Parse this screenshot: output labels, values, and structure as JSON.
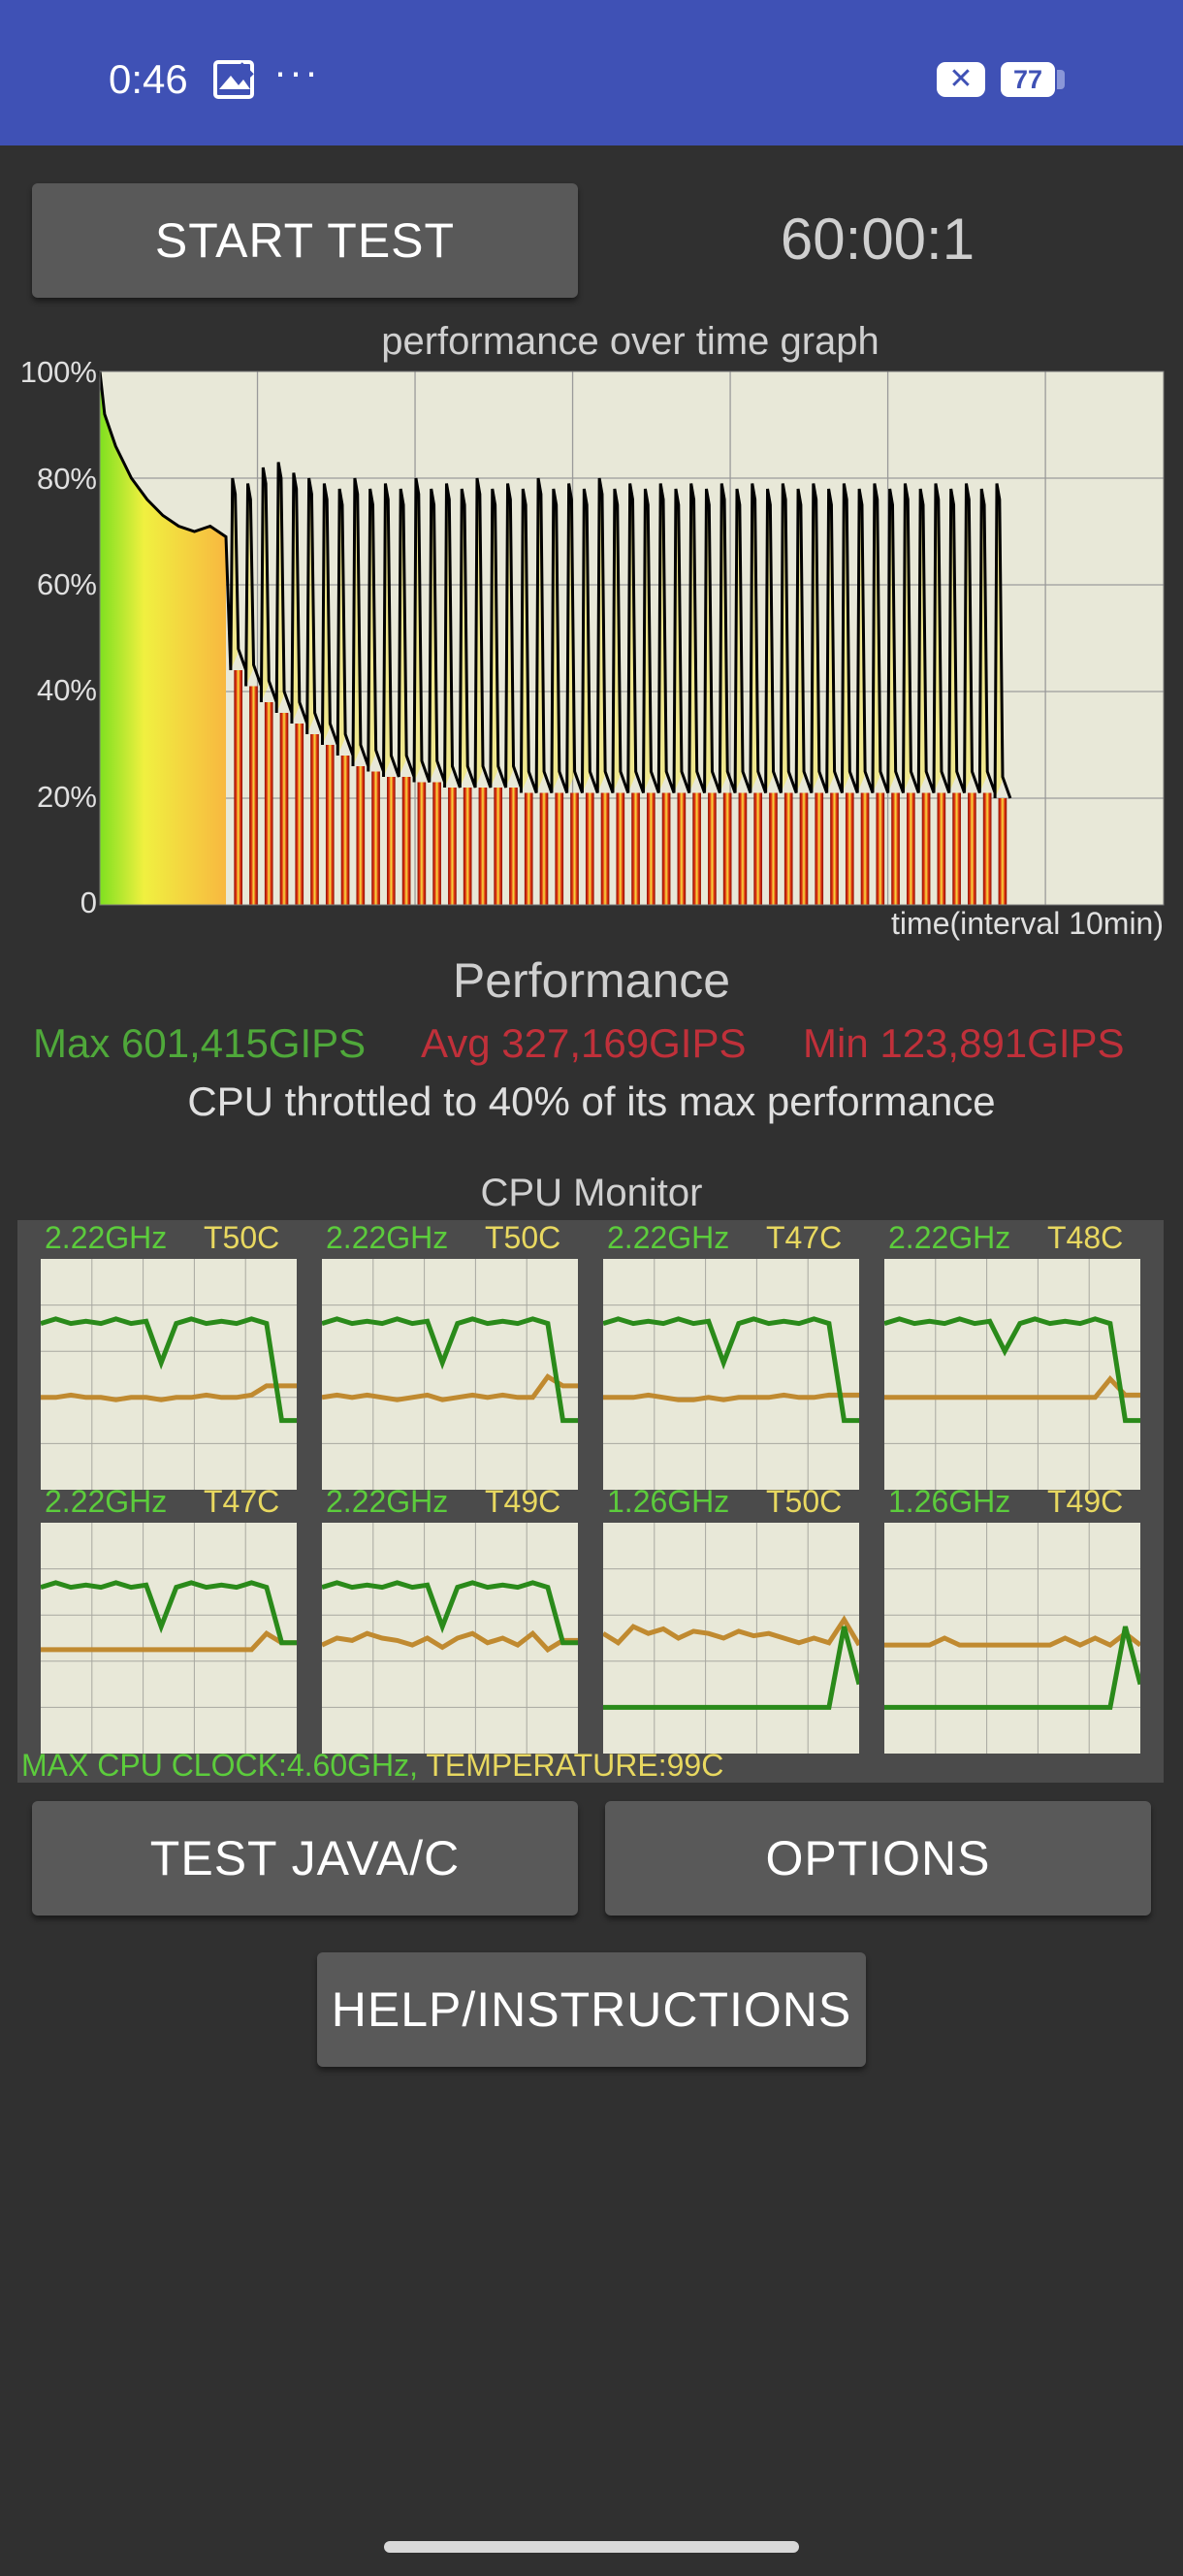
{
  "status_bar": {
    "time": "0:46",
    "photo_icon": "image-icon",
    "more": "···",
    "notification_badge": "✕",
    "battery_level": "77"
  },
  "controls": {
    "start_label": "START TEST",
    "timer": "60:00:1"
  },
  "chart_data": {
    "type": "area",
    "title": "performance over time graph",
    "xlabel": "time(interval 10min)",
    "ylabel": "",
    "y_tick_labels": [
      "100%",
      "80%",
      "60%",
      "40%",
      "20%",
      "0"
    ],
    "ylim": [
      0,
      100
    ],
    "xlim": [
      0,
      67.5
    ],
    "grid": true,
    "x_gridlines_minutes": [
      10,
      20,
      30,
      40,
      50,
      60
    ],
    "series": [
      {
        "x": [
          0,
          0.3,
          1,
          2,
          3,
          4,
          5,
          6,
          7,
          8
        ],
        "y": [
          100,
          92,
          86,
          80,
          76,
          73,
          71,
          70,
          71,
          69
        ]
      },
      {
        "cycles_start_min": 8.3,
        "cycle_period_min": 0.97,
        "cycle_count": 51,
        "peak_percent": [
          80,
          79,
          82,
          83,
          81,
          80,
          79,
          78,
          80,
          78,
          79,
          78,
          80,
          78,
          79,
          78,
          80,
          78,
          79,
          78,
          80,
          78,
          79,
          78,
          80,
          78,
          79,
          78,
          79,
          78,
          79,
          78,
          79,
          78,
          79,
          78,
          79,
          78,
          79,
          78,
          79,
          78,
          79,
          78,
          79,
          78,
          79,
          78,
          79,
          78,
          79
        ],
        "trough_percent": [
          44,
          41,
          38,
          36,
          34,
          32,
          30,
          28,
          26,
          25,
          24,
          24,
          23,
          23,
          22,
          22,
          22,
          22,
          22,
          21,
          21,
          21,
          21,
          21,
          21,
          21,
          21,
          21,
          21,
          21,
          21,
          21,
          21,
          21,
          21,
          21,
          21,
          21,
          21,
          21,
          21,
          21,
          21,
          21,
          21,
          21,
          21,
          21,
          21,
          21,
          20
        ]
      }
    ],
    "colors": {
      "plot_bg": "#e8e8d8",
      "line": "#000000",
      "fill_high": "#7fe020",
      "fill_mid": "#f8e040",
      "fill_low": "#d02010"
    }
  },
  "performance": {
    "heading": "Performance",
    "max": "Max 601,415GIPS",
    "avg": "Avg 327,169GIPS",
    "min": "Min 123,891GIPS",
    "max_color": "#4fa83a",
    "avg_color": "#c0303a",
    "min_color": "#c0303a",
    "throttle_text": "CPU throttled to 40% of its max performance"
  },
  "cpu_monitor": {
    "title": "CPU Monitor",
    "cores": [
      {
        "freq": "2.22GHz",
        "temp": "T50C",
        "freq_trace": [
          0.72,
          0.74,
          0.72,
          0.73,
          0.72,
          0.74,
          0.72,
          0.73,
          0.55,
          0.72,
          0.74,
          0.72,
          0.73,
          0.72,
          0.74,
          0.72,
          0.3,
          0.3
        ],
        "temp_trace": [
          0.4,
          0.4,
          0.41,
          0.4,
          0.4,
          0.39,
          0.4,
          0.4,
          0.39,
          0.4,
          0.4,
          0.41,
          0.4,
          0.4,
          0.41,
          0.45,
          0.45,
          0.45
        ]
      },
      {
        "freq": "2.22GHz",
        "temp": "T50C",
        "freq_trace": [
          0.72,
          0.74,
          0.72,
          0.73,
          0.72,
          0.74,
          0.72,
          0.73,
          0.55,
          0.72,
          0.74,
          0.72,
          0.73,
          0.72,
          0.74,
          0.72,
          0.3,
          0.3
        ],
        "temp_trace": [
          0.4,
          0.41,
          0.4,
          0.41,
          0.4,
          0.39,
          0.4,
          0.41,
          0.39,
          0.4,
          0.41,
          0.4,
          0.41,
          0.4,
          0.4,
          0.49,
          0.45,
          0.45
        ]
      },
      {
        "freq": "2.22GHz",
        "temp": "T47C",
        "freq_trace": [
          0.72,
          0.74,
          0.72,
          0.73,
          0.72,
          0.74,
          0.72,
          0.73,
          0.55,
          0.72,
          0.74,
          0.72,
          0.73,
          0.72,
          0.74,
          0.72,
          0.3,
          0.3
        ],
        "temp_trace": [
          0.4,
          0.4,
          0.4,
          0.41,
          0.4,
          0.39,
          0.39,
          0.4,
          0.39,
          0.4,
          0.4,
          0.4,
          0.41,
          0.4,
          0.4,
          0.41,
          0.41,
          0.41
        ]
      },
      {
        "freq": "2.22GHz",
        "temp": "T48C",
        "freq_trace": [
          0.72,
          0.74,
          0.72,
          0.73,
          0.72,
          0.74,
          0.72,
          0.73,
          0.6,
          0.72,
          0.74,
          0.72,
          0.73,
          0.72,
          0.74,
          0.72,
          0.3,
          0.3
        ],
        "temp_trace": [
          0.4,
          0.4,
          0.4,
          0.4,
          0.4,
          0.4,
          0.4,
          0.4,
          0.4,
          0.4,
          0.4,
          0.4,
          0.4,
          0.4,
          0.4,
          0.48,
          0.41,
          0.41
        ]
      },
      {
        "freq": "2.22GHz",
        "temp": "T47C",
        "freq_trace": [
          0.72,
          0.74,
          0.72,
          0.73,
          0.72,
          0.74,
          0.72,
          0.73,
          0.55,
          0.72,
          0.74,
          0.72,
          0.73,
          0.72,
          0.74,
          0.72,
          0.48,
          0.48
        ],
        "temp_trace": [
          0.45,
          0.45,
          0.45,
          0.45,
          0.45,
          0.45,
          0.45,
          0.45,
          0.45,
          0.45,
          0.45,
          0.45,
          0.45,
          0.45,
          0.45,
          0.52,
          0.48,
          0.48
        ]
      },
      {
        "freq": "2.22GHz",
        "temp": "T49C",
        "freq_trace": [
          0.72,
          0.74,
          0.72,
          0.73,
          0.72,
          0.74,
          0.72,
          0.73,
          0.55,
          0.72,
          0.74,
          0.72,
          0.73,
          0.72,
          0.74,
          0.72,
          0.48,
          0.48
        ],
        "temp_trace": [
          0.47,
          0.5,
          0.49,
          0.52,
          0.5,
          0.49,
          0.47,
          0.5,
          0.46,
          0.5,
          0.52,
          0.48,
          0.5,
          0.47,
          0.52,
          0.45,
          0.49,
          0.49
        ]
      },
      {
        "freq": "1.26GHz",
        "temp": "T50C",
        "freq_trace": [
          0.2,
          0.2,
          0.2,
          0.2,
          0.2,
          0.2,
          0.2,
          0.2,
          0.2,
          0.2,
          0.2,
          0.2,
          0.2,
          0.2,
          0.2,
          0.2,
          0.55,
          0.3
        ],
        "temp_trace": [
          0.52,
          0.48,
          0.55,
          0.52,
          0.54,
          0.5,
          0.53,
          0.52,
          0.5,
          0.53,
          0.51,
          0.52,
          0.5,
          0.48,
          0.5,
          0.48,
          0.58,
          0.47
        ]
      },
      {
        "freq": "1.26GHz",
        "temp": "T49C",
        "freq_trace": [
          0.2,
          0.2,
          0.2,
          0.2,
          0.2,
          0.2,
          0.2,
          0.2,
          0.2,
          0.2,
          0.2,
          0.2,
          0.2,
          0.2,
          0.2,
          0.2,
          0.55,
          0.3
        ],
        "temp_trace": [
          0.47,
          0.47,
          0.47,
          0.47,
          0.5,
          0.47,
          0.47,
          0.47,
          0.47,
          0.47,
          0.47,
          0.47,
          0.5,
          0.47,
          0.5,
          0.47,
          0.52,
          0.47
        ]
      }
    ],
    "footer_clock": "MAX CPU CLOCK:4.60GHz,",
    "footer_temp": " TEMPERATURE:99C",
    "colors": {
      "freq": "#2a8a1a",
      "temp": "#c08a30",
      "graph_bg": "#e8e8d8"
    }
  },
  "buttons": {
    "test_java": "TEST JAVA/C",
    "options": "OPTIONS",
    "help": "HELP/INSTRUCTIONS"
  }
}
